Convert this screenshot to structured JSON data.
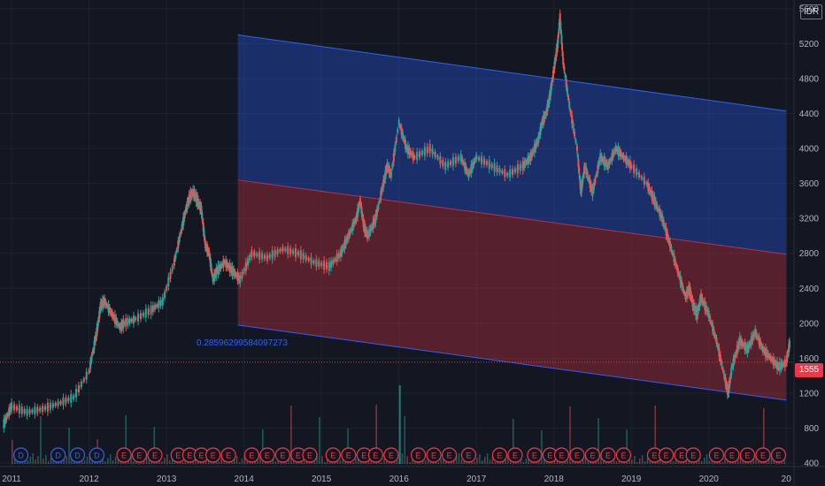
{
  "header": {
    "currency": "IDR"
  },
  "last_price": "1555",
  "chart_data": {
    "type": "line",
    "title": "",
    "xlabel": "",
    "ylabel": "",
    "x_ticks": [
      "2011",
      "2012",
      "2013",
      "2014",
      "2015",
      "2016",
      "2017",
      "2018",
      "2019",
      "2020",
      "20"
    ],
    "y_ticks": [
      5600,
      5200,
      4800,
      4400,
      4000,
      3600,
      3200,
      2800,
      2400,
      2000,
      1600,
      1200,
      800,
      400
    ],
    "ylim": [
      360,
      5700
    ],
    "xlim": [
      2010.85,
      2021.1
    ],
    "grid": true,
    "price_series": {
      "x": [
        2010.9,
        2011.0,
        2011.2,
        2011.4,
        2011.6,
        2011.8,
        2012.0,
        2012.1,
        2012.15,
        2012.2,
        2012.3,
        2012.4,
        2012.45,
        2012.6,
        2012.8,
        2012.95,
        2013.1,
        2013.2,
        2013.25,
        2013.3,
        2013.35,
        2013.4,
        2013.45,
        2013.5,
        2013.55,
        2013.6,
        2013.65,
        2013.75,
        2013.85,
        2013.95,
        2014.1,
        2014.3,
        2014.5,
        2014.7,
        2014.9,
        2015.1,
        2015.25,
        2015.35,
        2015.45,
        2015.5,
        2015.55,
        2015.6,
        2015.7,
        2015.8,
        2015.85,
        2015.9,
        2016.0,
        2016.1,
        2016.2,
        2016.4,
        2016.6,
        2016.8,
        2016.9,
        2017.0,
        2017.2,
        2017.4,
        2017.6,
        2017.7,
        2017.8,
        2017.85,
        2017.9,
        2017.95,
        2018.0,
        2018.05,
        2018.08,
        2018.12,
        2018.2,
        2018.3,
        2018.35,
        2018.4,
        2018.5,
        2018.6,
        2018.7,
        2018.8,
        2018.9,
        2019.0,
        2019.2,
        2019.3,
        2019.4,
        2019.5,
        2019.6,
        2019.7,
        2019.75,
        2019.8,
        2019.85,
        2019.9,
        2020.0,
        2020.1,
        2020.2,
        2020.25,
        2020.3,
        2020.4,
        2020.5,
        2020.6,
        2020.7,
        2020.8,
        2020.9,
        2021.0,
        2021.05
      ],
      "y": [
        850,
        1050,
        980,
        1020,
        1080,
        1150,
        1450,
        1900,
        2200,
        2250,
        2100,
        1950,
        2000,
        2050,
        2150,
        2250,
        2700,
        3100,
        3300,
        3450,
        3500,
        3400,
        3300,
        2900,
        2800,
        2500,
        2600,
        2700,
        2600,
        2500,
        2800,
        2750,
        2850,
        2800,
        2700,
        2650,
        2800,
        3000,
        3200,
        3400,
        3100,
        3000,
        3200,
        3600,
        3800,
        3700,
        4300,
        4000,
        3900,
        4000,
        3800,
        3900,
        3700,
        3900,
        3800,
        3700,
        3800,
        3900,
        4100,
        4300,
        4400,
        4600,
        4900,
        5200,
        5500,
        5000,
        4500,
        4000,
        3500,
        3800,
        3500,
        3900,
        3800,
        4000,
        3900,
        3800,
        3600,
        3400,
        3200,
        2900,
        2600,
        2300,
        2400,
        2200,
        2100,
        2300,
        2100,
        1800,
        1400,
        1200,
        1500,
        1800,
        1700,
        1900,
        1700,
        1600,
        1500,
        1550,
        1800
      ]
    },
    "regression_channel": {
      "start_x": 2013.92,
      "end_x": 2021.0,
      "upper": [
        5300,
        4430
      ],
      "mid": [
        3640,
        2790
      ],
      "lower": [
        1980,
        1120
      ],
      "upper_fill": "#2962ff",
      "lower_fill": "#f23645",
      "ratio_label": "0.28596299584097273"
    },
    "volume_color": "#26a69a",
    "event_markers": {
      "D": [
        2011.12,
        2011.6,
        2011.85,
        2012.1
      ],
      "E": [
        2012.45,
        2012.65,
        2012.85,
        2013.15,
        2013.3,
        2013.45,
        2013.6,
        2013.8,
        2014.1,
        2014.3,
        2014.5,
        2014.7,
        2014.85,
        2015.15,
        2015.35,
        2015.55,
        2015.7,
        2015.9,
        2016.25,
        2016.45,
        2016.65,
        2016.9,
        2017.3,
        2017.5,
        2017.75,
        2017.95,
        2018.1,
        2018.3,
        2018.5,
        2018.7,
        2018.9,
        2019.3,
        2019.45,
        2019.65,
        2019.8,
        2020.1,
        2020.3,
        2020.5,
        2020.7,
        2020.9
      ]
    },
    "colors": {
      "up": "#26a69a",
      "down": "#ef5350",
      "blue": "#2962ff",
      "background": "#131722",
      "grid": "#1e222d"
    }
  }
}
